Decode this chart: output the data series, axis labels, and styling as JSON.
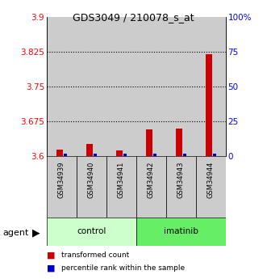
{
  "title": "GDS3049 / 210078_s_at",
  "samples": [
    "GSM34939",
    "GSM34940",
    "GSM34941",
    "GSM34942",
    "GSM34943",
    "GSM34944"
  ],
  "red_values": [
    3.614,
    3.627,
    3.612,
    3.658,
    3.66,
    3.82
  ],
  "blue_pct": [
    2,
    2,
    2,
    2,
    2,
    2
  ],
  "y_min": 3.6,
  "y_max": 3.9,
  "y_ticks": [
    3.6,
    3.675,
    3.75,
    3.825,
    3.9
  ],
  "y2_ticks": [
    0,
    25,
    50,
    75,
    100
  ],
  "groups": [
    {
      "label": "control",
      "indices": [
        0,
        1,
        2
      ],
      "color": "#ccffcc"
    },
    {
      "label": "imatinib",
      "indices": [
        3,
        4,
        5
      ],
      "color": "#66ee66"
    }
  ],
  "red_color": "#cc0000",
  "blue_color": "#0000cc",
  "bg_color": "#cccccc",
  "agent_label": "agent"
}
